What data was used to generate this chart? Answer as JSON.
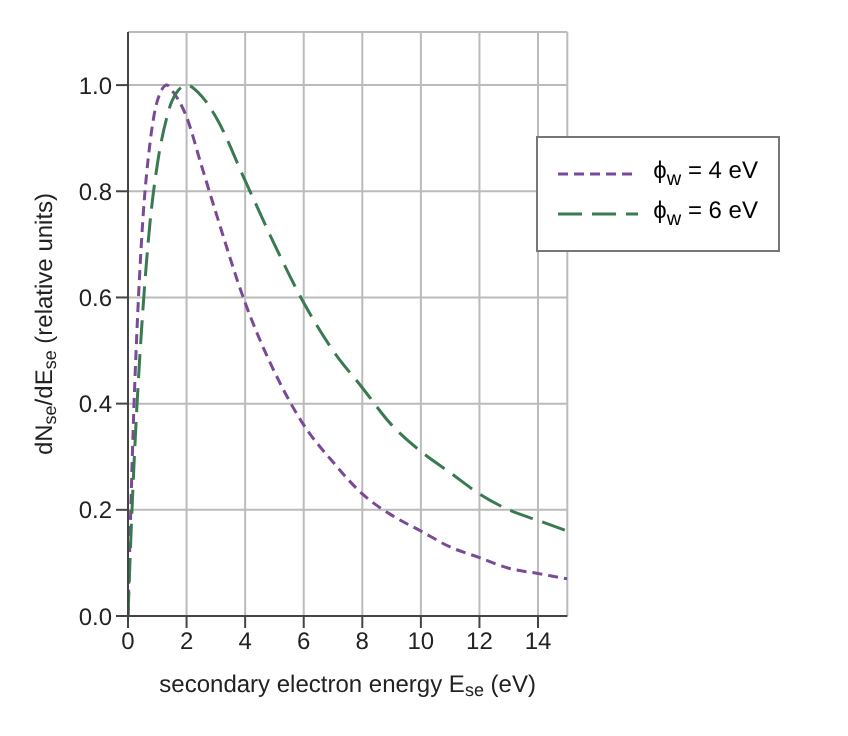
{
  "chart_data": {
    "type": "line",
    "xlabel": "secondary electron energy E$_{se}$ (eV)",
    "ylabel": "dN$_{se}$/dE$_{se}$ (relative units)",
    "x": [
      0,
      0.1,
      0.2,
      0.3,
      0.5,
      0.75,
      1,
      1.33,
      1.5,
      2,
      2.5,
      3,
      4,
      5,
      6,
      7,
      8,
      9,
      10,
      11,
      12,
      13,
      14,
      15
    ],
    "series": [
      {
        "name": "ϕ$_{w}$ = 4 eV",
        "color": "#7a4a96",
        "line_style": "dashed",
        "values": [
          0,
          0.21,
          0.39,
          0.53,
          0.74,
          0.89,
          0.97,
          1.0,
          0.99,
          0.94,
          0.85,
          0.76,
          0.59,
          0.46,
          0.36,
          0.29,
          0.23,
          0.19,
          0.16,
          0.13,
          0.11,
          0.09,
          0.08,
          0.07
        ]
      },
      {
        "name": "ϕ$_{w}$ = 6 eV",
        "color": "#3a7a52",
        "line_style": "dashed",
        "values": [
          0,
          0.15,
          0.28,
          0.39,
          0.57,
          0.74,
          0.85,
          0.94,
          0.97,
          1.0,
          0.98,
          0.94,
          0.82,
          0.7,
          0.59,
          0.5,
          0.43,
          0.36,
          0.31,
          0.27,
          0.23,
          0.2,
          0.18,
          0.16
        ]
      }
    ],
    "xlim": [
      0,
      15
    ],
    "xticks": [
      0,
      2,
      4,
      6,
      8,
      10,
      12,
      14
    ],
    "ylim": [
      0,
      1.1
    ],
    "yticks": [
      {
        "value": 0,
        "label": "0.0"
      },
      {
        "value": 0.2,
        "label": "0.2"
      },
      {
        "value": 0.4,
        "label": "0.4"
      },
      {
        "value": 0.6,
        "label": "0.6"
      },
      {
        "value": 0.8,
        "label": "0.8"
      },
      {
        "value": 1.0,
        "label": "1.0"
      }
    ],
    "grid": true,
    "legend": "top right"
  }
}
